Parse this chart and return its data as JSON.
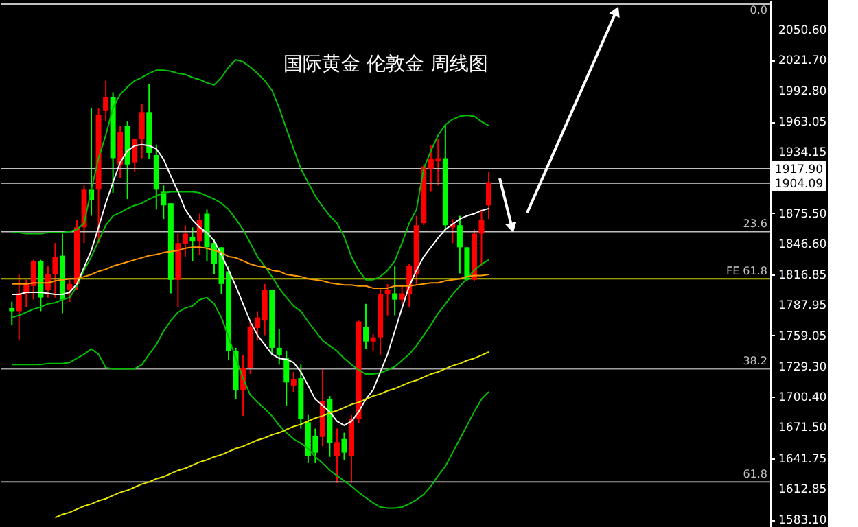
{
  "chart_data": {
    "type": "candlestick",
    "title": "国际黄金  伦敦金 周线图",
    "categories": [
      null,
      null,
      null,
      null,
      null,
      null,
      null,
      null,
      null,
      null,
      null,
      null,
      null,
      null,
      null,
      null,
      null,
      null,
      null,
      null,
      null,
      null,
      null,
      null,
      null,
      null,
      null,
      null,
      null,
      null,
      null,
      null,
      null,
      null,
      null,
      null,
      null,
      null,
      null,
      null,
      null,
      null,
      null,
      null,
      null,
      null,
      null,
      null,
      null,
      null,
      null,
      null,
      null,
      null,
      null,
      null,
      null,
      null,
      null,
      null,
      null,
      null,
      null,
      null,
      null,
      null,
      null
    ],
    "ohlc": [
      [
        1785,
        1791,
        1769,
        1782
      ],
      [
        1782,
        1817,
        1754,
        1799
      ],
      [
        1799,
        1812,
        1786,
        1808
      ],
      [
        1806,
        1831,
        1793,
        1830
      ],
      [
        1830,
        1831,
        1782,
        1795
      ],
      [
        1802,
        1825,
        1795,
        1817
      ],
      [
        1817,
        1847,
        1795,
        1834
      ],
      [
        1835,
        1856,
        1780,
        1793
      ],
      [
        1802,
        1812,
        1791,
        1808
      ],
      [
        1808,
        1869,
        1802,
        1862
      ],
      [
        1862,
        1902,
        1847,
        1898
      ],
      [
        1898,
        1976,
        1873,
        1888
      ],
      [
        1898,
        1976,
        1847,
        1969
      ],
      [
        1973,
        2002,
        1963,
        1986
      ],
      [
        1986,
        1991,
        1895,
        1928
      ],
      [
        1922,
        1959,
        1909,
        1953
      ],
      [
        1959,
        1963,
        1889,
        1922
      ],
      [
        1924,
        1947,
        1915,
        1946
      ],
      [
        1946,
        1980,
        1928,
        1972
      ],
      [
        1972,
        1999,
        1927,
        1933
      ],
      [
        1931,
        1941,
        1879,
        1898
      ],
      [
        1896,
        1902,
        1870,
        1883
      ],
      [
        1885,
        1885,
        1799,
        1812
      ],
      [
        1812,
        1856,
        1786,
        1847
      ],
      [
        1846,
        1864,
        1834,
        1856
      ],
      [
        1853,
        1862,
        1830,
        1849
      ],
      [
        1849,
        1875,
        1836,
        1869
      ],
      [
        1875,
        1879,
        1830,
        1843
      ],
      [
        1847,
        1851,
        1817,
        1827
      ],
      [
        1843,
        1843,
        1798,
        1808
      ],
      [
        1820,
        1825,
        1735,
        1744
      ],
      [
        1744,
        1747,
        1698,
        1707
      ],
      [
        1707,
        1740,
        1682,
        1728
      ],
      [
        1728,
        1773,
        1722,
        1767
      ],
      [
        1766,
        1782,
        1754,
        1776
      ],
      [
        1773,
        1808,
        1759,
        1802
      ],
      [
        1802,
        1802,
        1740,
        1747
      ],
      [
        1747,
        1765,
        1731,
        1740
      ],
      [
        1737,
        1744,
        1692,
        1714
      ],
      [
        1711,
        1724,
        1705,
        1717
      ],
      [
        1718,
        1731,
        1670,
        1679
      ],
      [
        1676,
        1683,
        1637,
        1644
      ],
      [
        1663,
        1670,
        1637,
        1647
      ],
      [
        1662,
        1728,
        1653,
        1696
      ],
      [
        1698,
        1701,
        1643,
        1656
      ],
      [
        1644,
        1670,
        1618,
        1657
      ],
      [
        1660,
        1666,
        1640,
        1647
      ],
      [
        1644,
        1683,
        1618,
        1679
      ],
      [
        1679,
        1773,
        1675,
        1772
      ],
      [
        1767,
        1789,
        1746,
        1753
      ],
      [
        1753,
        1760,
        1744,
        1757
      ],
      [
        1757,
        1804,
        1740,
        1798
      ],
      [
        1798,
        1808,
        1778,
        1802
      ],
      [
        1799,
        1825,
        1778,
        1793
      ],
      [
        1793,
        1806,
        1789,
        1799
      ],
      [
        1798,
        1827,
        1786,
        1825
      ],
      [
        1817,
        1873,
        1808,
        1864
      ],
      [
        1866,
        1922,
        1864,
        1920
      ],
      [
        1918,
        1940,
        1896,
        1927
      ],
      [
        1925,
        1946,
        1902,
        1928
      ],
      [
        1928,
        1960,
        1860,
        1864
      ],
      [
        1862,
        1870,
        1847,
        1865
      ],
      [
        1864,
        1873,
        1818,
        1843
      ],
      [
        1843,
        1843,
        1811,
        1812
      ],
      [
        1812,
        1860,
        1811,
        1856
      ],
      [
        1856,
        1879,
        1825,
        1869
      ],
      [
        1883,
        1915,
        1870,
        1905
      ]
    ],
    "colors": [
      "#00ff00",
      "#ff0000",
      "#ff0000",
      "#ff0000",
      "#00ff00",
      "#ff0000",
      "#ff0000",
      "#00ff00",
      "#ff0000",
      "#ff0000",
      "#ff0000",
      "#00ff00",
      "#ff0000",
      "#ff0000",
      "#00ff00",
      "#ff0000",
      "#00ff00",
      "#ff0000",
      "#ff0000",
      "#00ff00",
      "#00ff00",
      "#00ff00",
      "#00ff00",
      "#ff0000",
      "#ff0000",
      "#00ff00",
      "#ff0000",
      "#00ff00",
      "#00ff00",
      "#00ff00",
      "#00ff00",
      "#00ff00",
      "#ff0000",
      "#ff0000",
      "#ff0000",
      "#ff0000",
      "#00ff00",
      "#00ff00",
      "#00ff00",
      "#ff0000",
      "#00ff00",
      "#00ff00",
      "#00ff00",
      "#ff0000",
      "#00ff00",
      "#ff0000",
      "#00ff00",
      "#ff0000",
      "#ff0000",
      "#00ff00",
      "#ff0000",
      "#ff0000",
      "#ff0000",
      "#00ff00",
      "#ff0000",
      "#ff0000",
      "#ff0000",
      "#ff0000",
      "#ff0000",
      "#ff0000",
      "#00ff00",
      "#ff0000",
      "#00ff00",
      "#00ff00",
      "#ff0000",
      "#ff0000",
      "#ff0000"
    ],
    "series": [
      {
        "type": "line",
        "color": "#00c000",
        "values": [
          1857,
          1857,
          1856,
          1856,
          1856,
          1857,
          1857,
          1857,
          1858,
          1860,
          1866,
          1898,
          1928,
          1950,
          1976,
          1989,
          1996,
          2002,
          2005,
          2009,
          2012,
          2012,
          2011,
          2009,
          2008,
          2005,
          2003,
          2000,
          1998,
          2005,
          2015,
          2022,
          2020,
          2015,
          2009,
          2002,
          1993,
          1976,
          1956,
          1937,
          1918,
          1905,
          1892,
          1882,
          1873,
          1866,
          1853,
          1834,
          1821,
          1812,
          1812,
          1815,
          1821,
          1830,
          1847,
          1866,
          1879,
          1918,
          1935,
          1950,
          1960,
          1965,
          1968,
          1969,
          1968,
          1963,
          1959
        ]
      },
      {
        "type": "line",
        "color": "#00c000",
        "values": [
          1776,
          1778,
          1781,
          1784,
          1786,
          1789,
          1790,
          1793,
          1795,
          1806,
          1821,
          1834,
          1849,
          1864,
          1873,
          1876,
          1880,
          1883,
          1885,
          1889,
          1892,
          1895,
          1896,
          1896,
          1896,
          1896,
          1895,
          1892,
          1889,
          1885,
          1879,
          1870,
          1860,
          1847,
          1834,
          1825,
          1815,
          1804,
          1795,
          1787,
          1782,
          1772,
          1763,
          1754,
          1749,
          1744,
          1737,
          1731,
          1726,
          1722,
          1722,
          1723,
          1726,
          1729,
          1735,
          1741,
          1749,
          1759,
          1769,
          1780,
          1789,
          1798,
          1806,
          1813,
          1821,
          1827,
          1831
        ]
      },
      {
        "type": "line",
        "color": "#00c000",
        "values": [
          1731,
          1731,
          1731,
          1731,
          1731,
          1732,
          1732,
          1732,
          1733,
          1737,
          1741,
          1746,
          1741,
          1728,
          1727,
          1727,
          1727,
          1727,
          1731,
          1741,
          1750,
          1763,
          1773,
          1781,
          1785,
          1787,
          1793,
          1795,
          1789,
          1776,
          1757,
          1737,
          1718,
          1702,
          1695,
          1689,
          1682,
          1673,
          1666,
          1660,
          1656,
          1651,
          1643,
          1637,
          1630,
          1625,
          1620,
          1615,
          1609,
          1604,
          1599,
          1595,
          1594,
          1594,
          1595,
          1598,
          1602,
          1607,
          1615,
          1625,
          1634,
          1647,
          1660,
          1673,
          1686,
          1698,
          1705
        ]
      },
      {
        "type": "line",
        "color": "#ffffff",
        "values": [
          1798,
          1798,
          1800,
          1800,
          1800,
          1799,
          1798,
          1798,
          1800,
          1808,
          1824,
          1840,
          1862,
          1885,
          1905,
          1924,
          1935,
          1940,
          1941,
          1940,
          1937,
          1927,
          1911,
          1896,
          1879,
          1869,
          1862,
          1857,
          1849,
          1836,
          1821,
          1806,
          1789,
          1772,
          1759,
          1750,
          1741,
          1737,
          1736,
          1733,
          1724,
          1711,
          1698,
          1692,
          1686,
          1677,
          1673,
          1677,
          1686,
          1698,
          1707,
          1724,
          1741,
          1763,
          1785,
          1806,
          1821,
          1834,
          1843,
          1852,
          1860,
          1865,
          1870,
          1873,
          1875,
          1878,
          1880
        ]
      },
      {
        "type": "line",
        "color": "#ff9900",
        "values": [
          1808,
          1808,
          1808,
          1809,
          1809,
          1809,
          1811,
          1812,
          1813,
          1813,
          1815,
          1817,
          1820,
          1822,
          1825,
          1827,
          1829,
          1831,
          1833,
          1835,
          1836,
          1838,
          1839,
          1840,
          1842,
          1843,
          1843,
          1842,
          1840,
          1838,
          1834,
          1833,
          1830,
          1827,
          1825,
          1824,
          1821,
          1820,
          1817,
          1816,
          1815,
          1813,
          1812,
          1811,
          1809,
          1808,
          1807,
          1807,
          1806,
          1806,
          1804,
          1804,
          1804,
          1806,
          1806,
          1806,
          1807,
          1808,
          1809,
          1809,
          1811,
          1812,
          1813,
          1815,
          1816,
          1816,
          1817
        ]
      },
      {
        "type": "line",
        "color": "#e6e600",
        "values": [
          null,
          null,
          null,
          null,
          null,
          null,
          1585,
          1588,
          1590,
          1593,
          1596,
          1598,
          1601,
          1603,
          1606,
          1609,
          1611,
          1614,
          1617,
          1619,
          1622,
          1624,
          1627,
          1630,
          1632,
          1635,
          1638,
          1640,
          1643,
          1645,
          1648,
          1651,
          1653,
          1656,
          1659,
          1661,
          1664,
          1666,
          1669,
          1672,
          1674,
          1677,
          1680,
          1682,
          1685,
          1687,
          1690,
          1693,
          1695,
          1698,
          1701,
          1703,
          1706,
          1708,
          1711,
          1714,
          1716,
          1719,
          1722,
          1724,
          1727,
          1730,
          1732,
          1735,
          1737,
          1740,
          1743
        ]
      }
    ],
    "ylim": [
      1576,
      2079
    ],
    "yticks": [
      {
        "value": 1583.1,
        "label": "1583.10"
      },
      {
        "value": 1612.85,
        "label": "1612.85"
      },
      {
        "value": 1641.75,
        "label": "1641.75"
      },
      {
        "value": 1671.5,
        "label": "1671.50"
      },
      {
        "value": 1700.4,
        "label": "1700.40"
      },
      {
        "value": 1729.3,
        "label": "1729.30"
      },
      {
        "value": 1759.05,
        "label": "1759.05"
      },
      {
        "value": 1787.95,
        "label": "1787.95"
      },
      {
        "value": 1816.85,
        "label": "1816.85"
      },
      {
        "value": 1846.6,
        "label": "1846.60"
      },
      {
        "value": 1875.5,
        "label": "1875.50"
      },
      {
        "value": 1934.15,
        "label": "1934.15"
      },
      {
        "value": 1963.05,
        "label": "1963.05"
      },
      {
        "value": 1992.8,
        "label": "1992.80"
      },
      {
        "value": 2021.7,
        "label": "2021.70"
      },
      {
        "value": 2050.6,
        "label": "2050.60"
      }
    ],
    "tick_labels": "y",
    "grid": false,
    "line_style": "solid",
    "ref_lines": [
      {
        "axis": "y",
        "value": 2075,
        "color": "#c0c0c0"
      },
      {
        "axis": "y",
        "value": 1917.9,
        "label": "1917.90",
        "color": "#c0c0c0"
      },
      {
        "axis": "y",
        "value": 1904.09,
        "label": "1904.09",
        "color": "#a0a0a0"
      },
      {
        "axis": "y",
        "value": 1858,
        "color": "#c0c0c0"
      },
      {
        "axis": "y",
        "value": 1813,
        "color": "#c8c800"
      },
      {
        "axis": "y",
        "value": 1727,
        "color": "#a0a0a0"
      },
      {
        "axis": "y",
        "value": 1619,
        "color": "#a0a0a0"
      }
    ],
    "annotations": [
      {
        "text": "0.0",
        "y": 2075
      },
      {
        "text": "23.6",
        "y": 1858
      },
      {
        "text": "FE 61.8",
        "y": 1813
      },
      {
        "text": "38.2",
        "y": 1727
      },
      {
        "text": "61.8",
        "y": 1619
      }
    ]
  }
}
